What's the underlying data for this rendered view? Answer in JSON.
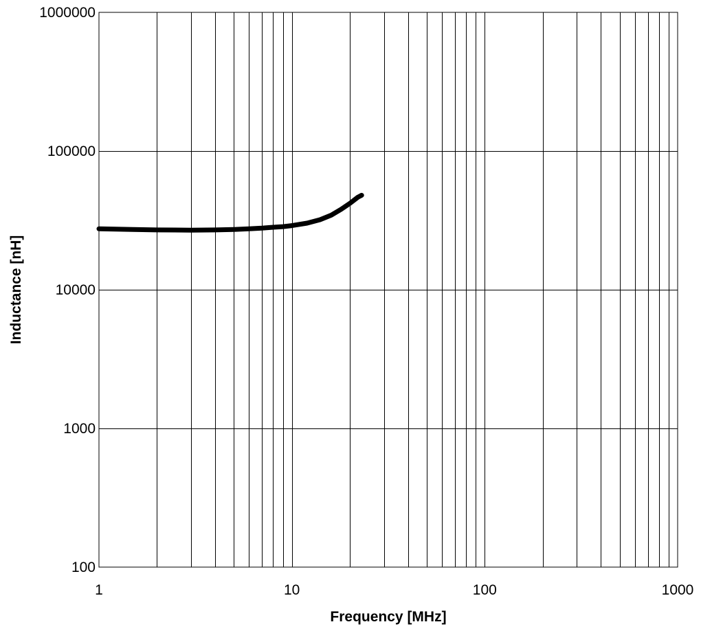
{
  "chart_data": {
    "type": "line",
    "title": "",
    "xlabel": "Frequency [MHz]",
    "ylabel": "Inductance [nH]",
    "xscale": "log",
    "yscale": "log",
    "xlim": [
      1,
      1000
    ],
    "ylim": [
      100,
      1000000
    ],
    "grid": true,
    "legend": "none",
    "x_ticks": [
      "1",
      "10",
      "100",
      "1000"
    ],
    "y_ticks": [
      "100",
      "1000",
      "10000",
      "100000",
      "1000000"
    ],
    "series": [
      {
        "color": "#000000",
        "x": [
          1,
          1.5,
          2,
          3,
          4,
          5,
          6,
          7,
          8,
          9,
          10,
          12,
          14,
          16,
          18,
          20,
          22,
          23
        ],
        "y": [
          27500,
          27200,
          27000,
          26900,
          27000,
          27200,
          27500,
          27800,
          28200,
          28500,
          29000,
          30200,
          32000,
          34500,
          38000,
          42000,
          46500,
          48000
        ]
      }
    ]
  }
}
